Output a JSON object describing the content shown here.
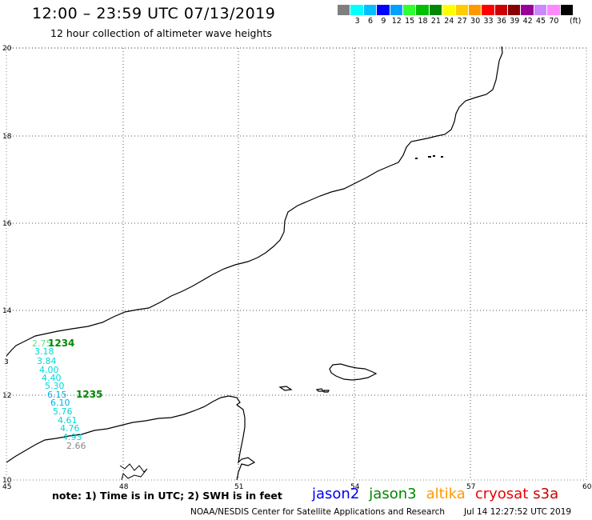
{
  "header": {
    "title": "12:00 – 23:59 UTC 07/13/2019",
    "subtitle": "12 hour collection of altimeter wave heights"
  },
  "legend": {
    "unit": "(ft)",
    "items": [
      {
        "label": "",
        "color": "#7f7f7f"
      },
      {
        "label": "3",
        "color": "#00ffff"
      },
      {
        "label": "6",
        "color": "#00c0ff"
      },
      {
        "label": "9",
        "color": "#0000ff"
      },
      {
        "label": "12",
        "color": "#00a0ff"
      },
      {
        "label": "15",
        "color": "#30ff30"
      },
      {
        "label": "18",
        "color": "#00c000"
      },
      {
        "label": "21",
        "color": "#008800"
      },
      {
        "label": "24",
        "color": "#ffff00"
      },
      {
        "label": "27",
        "color": "#ffcc00"
      },
      {
        "label": "30",
        "color": "#ff9900"
      },
      {
        "label": "33",
        "color": "#ff0000"
      },
      {
        "label": "36",
        "color": "#cc0000"
      },
      {
        "label": "39",
        "color": "#880000"
      },
      {
        "label": "42",
        "color": "#990099"
      },
      {
        "label": "45",
        "color": "#cc88ff"
      },
      {
        "label": "70",
        "color": "#ff88ff"
      },
      {
        "label": "",
        "color": "#000000"
      }
    ]
  },
  "map": {
    "lon_labels": [
      "45",
      "48",
      "51",
      "54",
      "57",
      "60"
    ],
    "lat_labels": [
      "20",
      "18",
      "16",
      "14",
      "12",
      "10"
    ],
    "extra_lat_label": "3",
    "lon_range": [
      45,
      60
    ],
    "lat_range": [
      10,
      20
    ],
    "grid": "dotted"
  },
  "observations": [
    {
      "value": "2.75",
      "color": "#66dd88"
    },
    {
      "value": "3.18",
      "color": "#00d8d8"
    },
    {
      "value": "3.84",
      "color": "#00d8d8"
    },
    {
      "value": "4.00",
      "color": "#00d8d8"
    },
    {
      "value": "4.40",
      "color": "#00d8d8"
    },
    {
      "value": "5.30",
      "color": "#00d8d8"
    },
    {
      "value": "6.15",
      "color": "#00b0e8"
    },
    {
      "value": "6.10",
      "color": "#00b0e8"
    },
    {
      "value": "5.76",
      "color": "#00d8d8"
    },
    {
      "value": "4.61",
      "color": "#00d8d8"
    },
    {
      "value": "4.76",
      "color": "#00d8d8"
    },
    {
      "value": "4.93",
      "color": "#00d8d8"
    },
    {
      "value": "2.66",
      "color": "#888888"
    }
  ],
  "track_labels": [
    "1234",
    "1235"
  ],
  "footer": {
    "note": "note: 1) Time is in UTC; 2) SWH is in feet",
    "satellites": [
      {
        "name": "jason2",
        "color": "#0000ee"
      },
      {
        "name": "jason3",
        "color": "#008800"
      },
      {
        "name": "altika",
        "color": "#ff9900"
      },
      {
        "name": "cryosat",
        "color": "#ee0000"
      },
      {
        "name": "s3a",
        "color": "#cc0000"
      }
    ],
    "credit": "NOAA/NESDIS Center for Satellite Applications and Research",
    "timestamp": "Jul 14 12:27:52 UTC 2019"
  }
}
